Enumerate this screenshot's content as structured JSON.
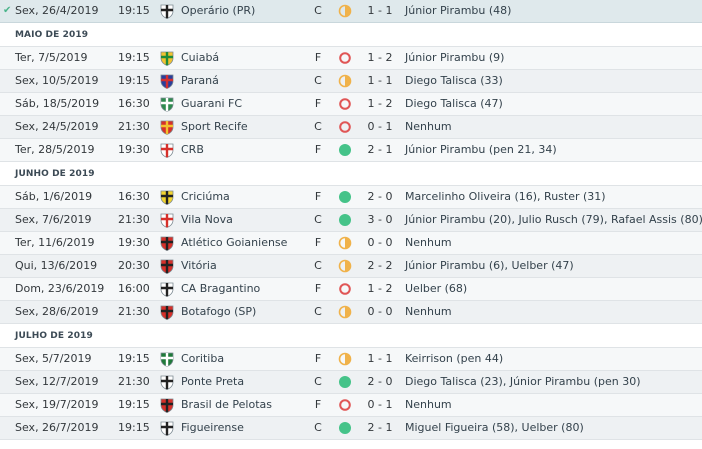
{
  "fixtures": [
    {
      "date": "Sex, 26/4/2019",
      "time": "19:15",
      "team": "Operário (PR)",
      "venue": "C",
      "result": "draw",
      "score": "1 - 1",
      "scorers": "Júnior Pirambu (48)",
      "crest": {
        "a": "#ffffff",
        "b": "#222222"
      }
    },
    {
      "month": "MAIO DE 2019"
    },
    {
      "date": "Ter, 7/5/2019",
      "time": "19:15",
      "team": "Cuiabá",
      "venue": "F",
      "result": "loss",
      "score": "1 - 2",
      "scorers": "Júnior Pirambu (9)",
      "crest": {
        "a": "#f2c230",
        "b": "#1f8a3a"
      }
    },
    {
      "date": "Sex, 10/5/2019",
      "time": "19:15",
      "team": "Paraná",
      "venue": "C",
      "result": "draw",
      "score": "1 - 1",
      "scorers": "Diego Talisca (33)",
      "crest": {
        "a": "#2a3f9b",
        "b": "#d33030"
      }
    },
    {
      "date": "Sáb, 18/5/2019",
      "time": "16:30",
      "team": "Guarani FC",
      "venue": "F",
      "result": "loss",
      "score": "1 - 2",
      "scorers": "Diego Talisca (47)",
      "crest": {
        "a": "#2e8b4f",
        "b": "#ffffff"
      }
    },
    {
      "date": "Sex, 24/5/2019",
      "time": "21:30",
      "team": "Sport Recife",
      "venue": "C",
      "result": "loss",
      "score": "0 - 1",
      "scorers": "Nenhum",
      "crest": {
        "a": "#d6302a",
        "b": "#f2c230"
      }
    },
    {
      "date": "Ter, 28/5/2019",
      "time": "19:30",
      "team": "CRB",
      "venue": "F",
      "result": "win",
      "score": "2 - 1",
      "scorers": "Júnior Pirambu (pen 21, 34)",
      "crest": {
        "a": "#ffffff",
        "b": "#d6302a"
      }
    },
    {
      "month": "JUNHO DE 2019"
    },
    {
      "date": "Sáb, 1/6/2019",
      "time": "16:30",
      "team": "Criciúma",
      "venue": "F",
      "result": "win",
      "score": "2 - 0",
      "scorers": "Marcelinho Oliveira (16), Ruster (31)",
      "crest": {
        "a": "#f2d430",
        "b": "#222222"
      }
    },
    {
      "date": "Sex, 7/6/2019",
      "time": "21:30",
      "team": "Vila Nova",
      "venue": "C",
      "result": "win",
      "score": "3 - 0",
      "scorers": "Júnior Pirambu (20), Julio Rusch (79), Rafael Assis (80)",
      "crest": {
        "a": "#ffffff",
        "b": "#d6302a"
      }
    },
    {
      "date": "Ter, 11/6/2019",
      "time": "19:30",
      "team": "Atlético Goianiense",
      "venue": "F",
      "result": "draw",
      "score": "0 - 0",
      "scorers": "Nenhum",
      "crest": {
        "a": "#d6302a",
        "b": "#222222"
      }
    },
    {
      "date": "Qui, 13/6/2019",
      "time": "20:30",
      "team": "Vitória",
      "venue": "C",
      "result": "draw",
      "score": "2 - 2",
      "scorers": "Júnior Pirambu (6), Uelber (47)",
      "crest": {
        "a": "#d6302a",
        "b": "#222222"
      }
    },
    {
      "date": "Dom, 23/6/2019",
      "time": "16:00",
      "team": "CA Bragantino",
      "venue": "F",
      "result": "loss",
      "score": "1 - 2",
      "scorers": "Uelber (68)",
      "crest": {
        "a": "#ffffff",
        "b": "#222222"
      }
    },
    {
      "date": "Sex, 28/6/2019",
      "time": "21:30",
      "team": "Botafogo (SP)",
      "venue": "C",
      "result": "draw",
      "score": "0 - 0",
      "scorers": "Nenhum",
      "crest": {
        "a": "#d6302a",
        "b": "#222222"
      }
    },
    {
      "month": "JULHO DE 2019"
    },
    {
      "date": "Sex, 5/7/2019",
      "time": "19:15",
      "team": "Coritiba",
      "venue": "F",
      "result": "draw",
      "score": "1 - 1",
      "scorers": "Keirrison (pen 44)",
      "crest": {
        "a": "#1f7a3a",
        "b": "#ffffff"
      }
    },
    {
      "date": "Sex, 12/7/2019",
      "time": "21:30",
      "team": "Ponte Preta",
      "venue": "C",
      "result": "win",
      "score": "2 - 0",
      "scorers": "Diego Talisca (23), Júnior Pirambu (pen 30)",
      "crest": {
        "a": "#ffffff",
        "b": "#222222"
      }
    },
    {
      "date": "Sex, 19/7/2019",
      "time": "19:15",
      "team": "Brasil de Pelotas",
      "venue": "F",
      "result": "loss",
      "score": "0 - 1",
      "scorers": "Nenhum",
      "crest": {
        "a": "#d6302a",
        "b": "#222222"
      }
    },
    {
      "date": "Sex, 26/7/2019",
      "time": "19:15",
      "team": "Figueirense",
      "venue": "C",
      "result": "win",
      "score": "2 - 1",
      "scorers": "Miguel Figueira (58), Uelber (80)",
      "crest": {
        "a": "#ffffff",
        "b": "#222222"
      }
    }
  ],
  "result_colors": {
    "win": "#45c389",
    "draw": "#f0b24a",
    "loss": "#e05656"
  },
  "selected_icon": "check-icon",
  "crest_icon": "club-crest-icon"
}
